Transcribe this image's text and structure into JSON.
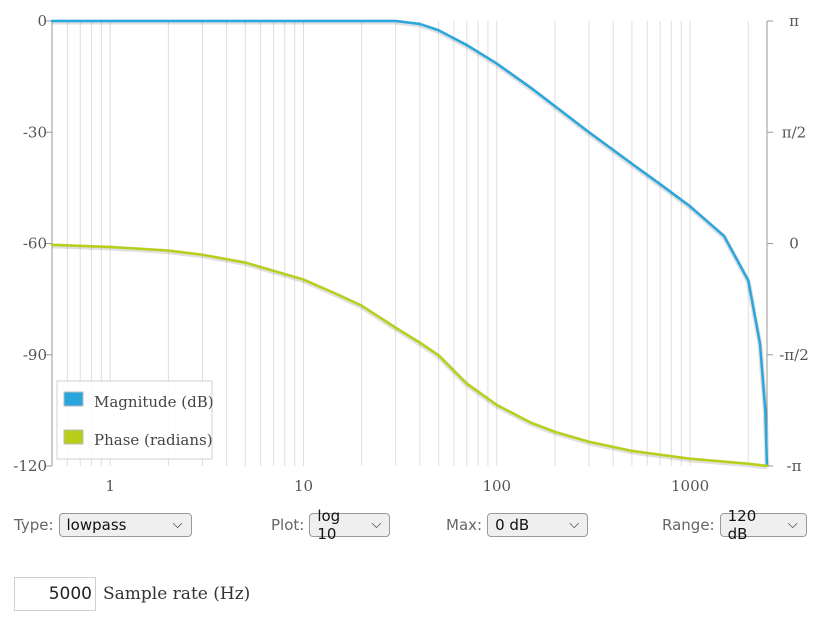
{
  "chart_data": {
    "type": "line",
    "title": "",
    "xscale": "log",
    "xlim": [
      0.5,
      2500
    ],
    "x_ticks": [
      "1",
      "10",
      "100",
      "1000"
    ],
    "y_left": {
      "ticks": [
        "0",
        "-30",
        "-60",
        "-90",
        "-120"
      ],
      "ylim": [
        -120,
        0
      ]
    },
    "y_right": {
      "ticks": [
        "π",
        "π/2",
        "0",
        "-π/2",
        "-π"
      ]
    },
    "grid": "vertical",
    "legend": {
      "placement": "bottom-left"
    },
    "series": [
      {
        "name": "Magnitude (dB)",
        "color": "#2aa6de",
        "axis": "left",
        "x": [
          0.5,
          5,
          10,
          20,
          30,
          40,
          50,
          70,
          100,
          150,
          200,
          300,
          500,
          700,
          1000,
          1500,
          2000,
          2300,
          2450,
          2500
        ],
        "y": [
          0,
          0,
          0,
          0,
          0,
          -0.8,
          -2.5,
          -6.5,
          -11.5,
          -18,
          -23,
          -30,
          -38.5,
          -44,
          -50,
          -58,
          -70,
          -87,
          -105,
          -120
        ]
      },
      {
        "name": "Phase (radians)",
        "color": "#b8cf1a",
        "axis": "right",
        "x": [
          0.5,
          1,
          2,
          3,
          5,
          10,
          15,
          20,
          30,
          40,
          50,
          70,
          100,
          150,
          200,
          300,
          500,
          1000,
          2000,
          2500
        ],
        "y": [
          -0.02,
          -0.05,
          -0.1,
          -0.16,
          -0.27,
          -0.51,
          -0.72,
          -0.88,
          -1.19,
          -1.4,
          -1.58,
          -1.98,
          -2.28,
          -2.53,
          -2.66,
          -2.8,
          -2.93,
          -3.04,
          -3.11,
          -3.14
        ]
      }
    ]
  },
  "controls": {
    "type": {
      "label": "Type:",
      "value": "lowpass"
    },
    "plot": {
      "label": "Plot:",
      "value": "log 10"
    },
    "max": {
      "label": "Max:",
      "value": "0 dB"
    },
    "range": {
      "label": "Range:",
      "value": "120 dB"
    }
  },
  "sample_rate": {
    "value": "5000",
    "label": "Sample rate (Hz)"
  },
  "icons": {
    "select": "chevron-down-icon"
  }
}
